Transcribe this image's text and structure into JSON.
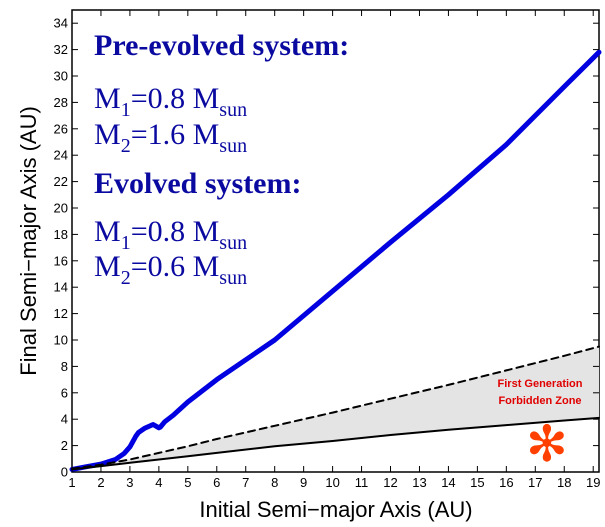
{
  "chart_data": {
    "type": "line",
    "xlabel": "Initial Semi−major Axis (AU)",
    "ylabel": "Final Semi−major Axis (AU)",
    "xlim": [
      1,
      19.2
    ],
    "ylim": [
      0,
      35
    ],
    "xticks": [
      "1",
      "2",
      "3",
      "4",
      "5",
      "6",
      "7",
      "8",
      "9",
      "10",
      "11",
      "12",
      "13",
      "14",
      "15",
      "16",
      "17",
      "18",
      "19"
    ],
    "yticks": [
      "0",
      "2",
      "4",
      "6",
      "8",
      "10",
      "12",
      "14",
      "16",
      "18",
      "20",
      "22",
      "24",
      "26",
      "28",
      "30",
      "32",
      "34"
    ],
    "grid": false,
    "series": [
      {
        "style": "solid-thick",
        "color": "#0000e0",
        "x": [
          1,
          1.5,
          2,
          2.5,
          2.8,
          3.0,
          3.2,
          3.3,
          3.5,
          3.8,
          4.0,
          4.05,
          4.2,
          4.5,
          5,
          6,
          8,
          10,
          12,
          14,
          16,
          18,
          19.2
        ],
        "y": [
          0.2,
          0.4,
          0.6,
          0.95,
          1.4,
          1.9,
          2.7,
          3.0,
          3.3,
          3.6,
          3.35,
          3.4,
          3.8,
          4.3,
          5.3,
          7.0,
          10.0,
          13.7,
          17.4,
          21.0,
          24.8,
          29.2,
          31.8
        ]
      },
      {
        "style": "dashed",
        "color": "#000000",
        "x": [
          1,
          2,
          3,
          4,
          5,
          6,
          8,
          10,
          12,
          14,
          16,
          18,
          19.2
        ],
        "y": [
          0.25,
          0.55,
          0.95,
          1.45,
          1.95,
          2.5,
          3.5,
          4.5,
          5.55,
          6.6,
          7.7,
          8.8,
          9.5
        ]
      },
      {
        "style": "solid",
        "color": "#000000",
        "x": [
          1,
          2,
          3,
          4,
          5,
          6,
          8,
          10,
          12,
          14,
          16,
          18,
          19.2
        ],
        "y": [
          0.2,
          0.45,
          0.7,
          0.95,
          1.2,
          1.45,
          1.95,
          2.35,
          2.8,
          3.2,
          3.55,
          3.9,
          4.1
        ]
      }
    ],
    "shaded_region": {
      "between": [
        "dashed",
        "solid"
      ],
      "color": "#e4e4e4"
    },
    "annotations": {
      "zone_line1": "First Generation",
      "zone_line2": "Forbidden Zone",
      "zone_color": "#e00000",
      "marker": "✻",
      "marker_color": "#ff4000",
      "marker_x": 17.4,
      "marker_y": 2.2,
      "pre_title": "Pre-evolved system:",
      "pre_m1": {
        "base": "M",
        "index": "1",
        "eq": "=0.8 ",
        "unit": "M",
        "unit_sub": "sun"
      },
      "pre_m2": {
        "base": "M",
        "index": "2",
        "eq": "=1.6 ",
        "unit": "M",
        "unit_sub": "sun"
      },
      "evo_title": "Evolved system:",
      "evo_m1": {
        "base": "M",
        "index": "1",
        "eq": "=0.8 ",
        "unit": "M",
        "unit_sub": "sun"
      },
      "evo_m2": {
        "base": "M",
        "index": "2",
        "eq": "=0.6 ",
        "unit": "M",
        "unit_sub": "sun"
      },
      "text_color": "#0a0aa0"
    }
  }
}
